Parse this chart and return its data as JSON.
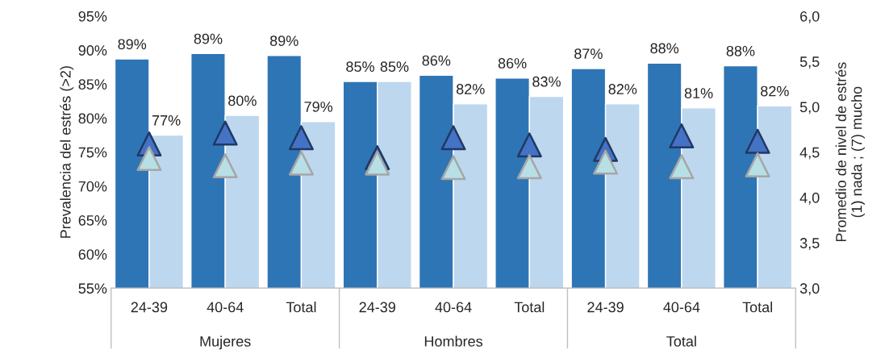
{
  "chart_data": {
    "type": "bar",
    "ylabel": "Prevalencia del estrés (>2)",
    "y2label": "Promedio de nivel de estrés\n(1) nada ; (7) mucho",
    "categories": [
      "24-39",
      "40-64",
      "Total",
      "24-39",
      "40-64",
      "Total",
      "24-39",
      "40-64",
      "Total"
    ],
    "annotations": [
      "Mujeres",
      "Hombres",
      "Total"
    ],
    "series": [
      {
        "color": "#2e75b6",
        "values": [
          88.7,
          89.5,
          89.2,
          85.4,
          86.3,
          85.9,
          87.3,
          88.1,
          87.7
        ],
        "value_labels": [
          "89%",
          "89%",
          "89%",
          "85%",
          "86%",
          "86%",
          "87%",
          "88%",
          "88%"
        ]
      },
      {
        "color": "#bdd7ee",
        "values": [
          77.5,
          80.4,
          79.5,
          85.4,
          82.1,
          83.2,
          82.1,
          81.5,
          81.8
        ],
        "value_labels": [
          "77%",
          "80%",
          "79%",
          "85%",
          "82%",
          "83%",
          "82%",
          "81%",
          "82%"
        ]
      },
      {
        "type": "scatter",
        "axis": "y2",
        "marker": "triangle",
        "color": "#4472c4",
        "values": [
          4.59,
          4.71,
          4.66,
          4.44,
          4.66,
          4.58,
          4.53,
          4.68,
          4.62
        ]
      },
      {
        "type": "scatter",
        "axis": "y2",
        "marker": "triangle",
        "color": "#b7dfe6",
        "values": [
          4.43,
          4.35,
          4.38,
          4.38,
          4.33,
          4.34,
          4.39,
          4.34,
          4.36
        ]
      }
    ],
    "ylim": [
      55,
      95
    ],
    "yticks": [
      {
        "value": 55,
        "label": "55%"
      },
      {
        "value": 60,
        "label": "60%"
      },
      {
        "value": 65,
        "label": "65%"
      },
      {
        "value": 70,
        "label": "70%"
      },
      {
        "value": 75,
        "label": "75%"
      },
      {
        "value": 80,
        "label": "80%"
      },
      {
        "value": 85,
        "label": "85%"
      },
      {
        "value": 90,
        "label": "90%"
      },
      {
        "value": 95,
        "label": "95%"
      }
    ],
    "y2lim": [
      3,
      6
    ],
    "y2ticks": [
      {
        "value": 3,
        "label": "3,0"
      },
      {
        "value": 3.5,
        "label": "3,5"
      },
      {
        "value": 4,
        "label": "4,0"
      },
      {
        "value": 4.5,
        "label": "4,5"
      },
      {
        "value": 5,
        "label": "5,0"
      },
      {
        "value": 5.5,
        "label": "5,5"
      },
      {
        "value": 6,
        "label": "6,0"
      }
    ],
    "grid": false,
    "legend": false
  }
}
